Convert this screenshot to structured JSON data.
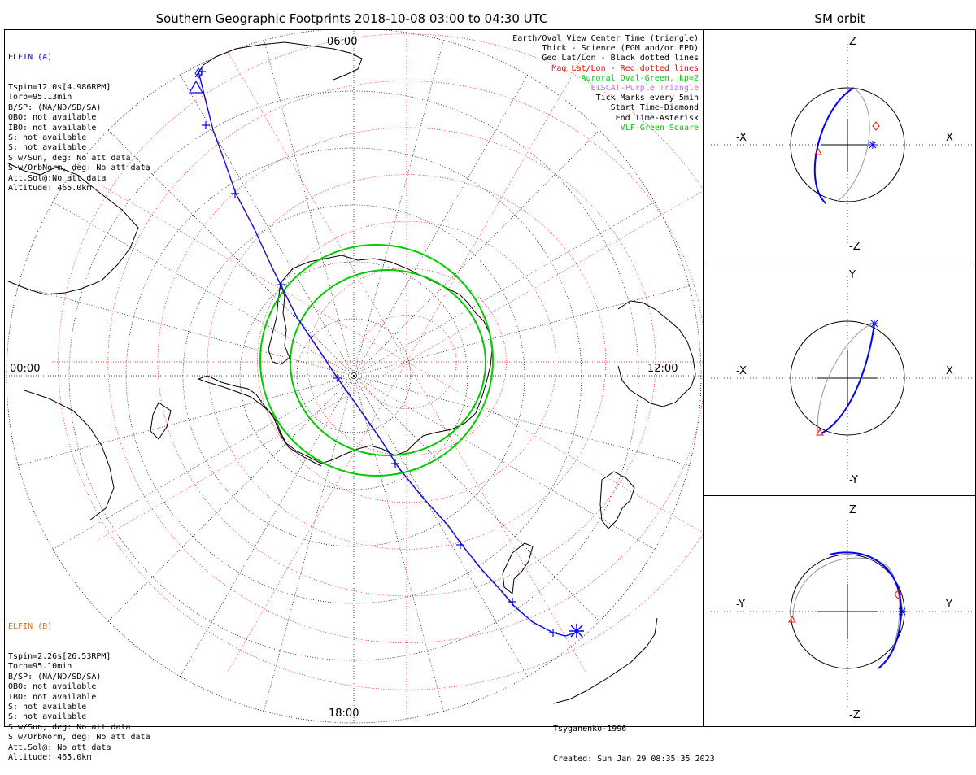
{
  "title": "Southern Geographic Footprints 2018-10-08 03:00 to 04:30 UTC",
  "sm_title": "SM orbit",
  "elfin_a": {
    "name": "ELFIN (A)",
    "color": "#0000ff",
    "lines": [
      "Tspin=12.0s[4.986RPM]",
      "Torb=95.13min",
      "B/SP: (NA/ND/SD/SA)",
      "OBO: not available",
      "IBO: not available",
      "S: not available",
      "S: not available",
      "S w/Sun, deg: No att data",
      "S w/OrbNorm, deg: No att data",
      "Att.Sol@:No att data",
      "Altitude: 465.0km"
    ]
  },
  "elfin_b": {
    "name": "ELFIN (B)",
    "color": "#ff6600",
    "lines": [
      "Tspin=2.26s[26.53RPM]",
      "Torb=95.10min",
      "B/SP: (NA/ND/SD/SA)",
      "OBO: not available",
      "IBO: not available",
      "S: not available",
      "S: not available",
      "S w/Sun, deg: No att data",
      "S w/OrbNorm, deg: No att data",
      "Att.Sol@: No att data",
      "Altitude: 465.0km"
    ]
  },
  "legend": [
    {
      "text": "Earth/Oval View Center Time (triangle)",
      "color": "#000000"
    },
    {
      "text": "Thick - Science (FGM and/or EPD)",
      "color": "#000000"
    },
    {
      "text": "Geo Lat/Lon - Black dotted lines",
      "color": "#000000"
    },
    {
      "text": "Mag Lat/Lon - Red dotted lines",
      "color": "#ff0000"
    },
    {
      "text": "Auroral Oval-Green, kp=2",
      "color": "#00cc00"
    },
    {
      "text": "EISCAT-Purple Triangle",
      "color": "#cc66ff"
    },
    {
      "text": "Tick Marks every 5min",
      "color": "#000000"
    },
    {
      "text": "Start Time-Diamond",
      "color": "#000000"
    },
    {
      "text": "End Time-Asterisk",
      "color": "#000000"
    },
    {
      "text": "VLF-Green Square",
      "color": "#00cc00"
    }
  ],
  "time_labels": {
    "top": "06:00",
    "left": "00:00",
    "right": "12:00",
    "bottom": "18:00"
  },
  "credits": {
    "model": "Tsyganenko-1996",
    "created": "Created: Sun Jan 29 08:35:35 2023"
  },
  "sm_panels": [
    {
      "left_label": "-X",
      "right_label": "X",
      "top_label": "Z",
      "bottom_label": "-Z"
    },
    {
      "left_label": "-X",
      "right_label": "X",
      "top_label": "Y",
      "bottom_label": "-Y"
    },
    {
      "left_label": "-Y",
      "right_label": "Y",
      "top_label": "Z",
      "bottom_label": "-Z"
    }
  ],
  "colors": {
    "track": "#0000ff",
    "geo_grid": "#000000",
    "mag_grid": "#ff0000",
    "oval": "#00cc00",
    "orbit_back": "#999999"
  }
}
